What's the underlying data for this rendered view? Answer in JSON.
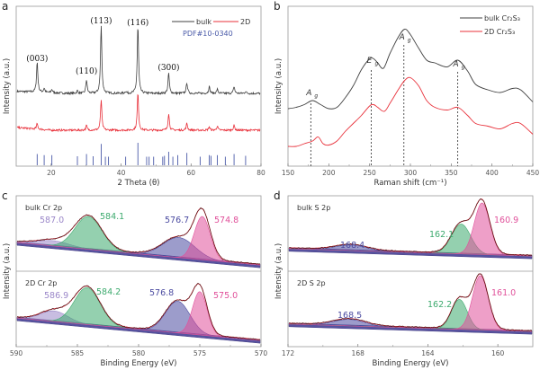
{
  "figure": {
    "panel_letters": [
      "a",
      "b",
      "c",
      "d"
    ]
  },
  "chart_data": [
    {
      "id": "a",
      "type": "line",
      "title": "",
      "xlabel": "2 Theta (θ)",
      "ylabel": "Intensity (a.u.)",
      "xlim": [
        10,
        80
      ],
      "xticks": [
        20,
        40,
        60,
        80
      ],
      "grid": false,
      "legend": {
        "placement": "top-right",
        "entries": [
          {
            "name": "bulk",
            "color": "#404040"
          },
          {
            "name": "2D",
            "color": "#e8303a"
          }
        ]
      },
      "reference_label": "PDF#10-0340",
      "reference_color": "#4a5aa8",
      "series": [
        {
          "name": "bulk",
          "color": "#404040",
          "peaks": [
            [
              16.0,
              0.45
            ],
            [
              18.0,
              0.06
            ],
            [
              20.2,
              0.05
            ],
            [
              27.5,
              0.04
            ],
            [
              30.1,
              0.2
            ],
            [
              34.3,
              1.0
            ],
            [
              41.3,
              0.03
            ],
            [
              44.8,
              1.0
            ],
            [
              53.6,
              0.3
            ],
            [
              58.8,
              0.16
            ],
            [
              65.2,
              0.1
            ],
            [
              67.5,
              0.06
            ],
            [
              72.3,
              0.1
            ],
            [
              75.6,
              0.03
            ]
          ]
        },
        {
          "name": "2D",
          "color": "#e8303a",
          "peaks": [
            [
              16.0,
              0.08
            ],
            [
              30.1,
              0.07
            ],
            [
              34.3,
              0.45
            ],
            [
              44.8,
              0.55
            ],
            [
              53.6,
              0.25
            ],
            [
              58.8,
              0.1
            ],
            [
              65.2,
              0.05
            ],
            [
              67.5,
              0.06
            ],
            [
              72.3,
              0.07
            ]
          ]
        }
      ],
      "reference_lines": [
        [
          16.0,
          0.5
        ],
        [
          18.0,
          0.45
        ],
        [
          20.2,
          0.45
        ],
        [
          27.5,
          0.4
        ],
        [
          30.1,
          0.5
        ],
        [
          32.0,
          0.4
        ],
        [
          34.3,
          0.95
        ],
        [
          35.5,
          0.38
        ],
        [
          36.4,
          0.38
        ],
        [
          41.3,
          0.38
        ],
        [
          44.8,
          1.0
        ],
        [
          47.3,
          0.38
        ],
        [
          48.0,
          0.38
        ],
        [
          49.3,
          0.38
        ],
        [
          51.9,
          0.38
        ],
        [
          52.4,
          0.42
        ],
        [
          53.6,
          0.6
        ],
        [
          54.8,
          0.38
        ],
        [
          56.2,
          0.45
        ],
        [
          58.8,
          0.55
        ],
        [
          62.6,
          0.38
        ],
        [
          65.2,
          0.45
        ],
        [
          65.7,
          0.42
        ],
        [
          67.5,
          0.45
        ],
        [
          69.8,
          0.38
        ],
        [
          72.3,
          0.5
        ],
        [
          75.6,
          0.42
        ]
      ],
      "annotations": [
        {
          "text": "(003)",
          "x": 16.0
        },
        {
          "text": "(110)",
          "x": 30.1
        },
        {
          "text": "(113)",
          "x": 34.3
        },
        {
          "text": "(116)",
          "x": 44.8
        },
        {
          "text": "(300)",
          "x": 53.6
        }
      ]
    },
    {
      "id": "b",
      "type": "line",
      "title": "",
      "xlabel": "Raman shift (cm⁻¹)",
      "ylabel": "Intensity (a.u.)",
      "xlim": [
        150,
        450
      ],
      "xticks": [
        150,
        200,
        250,
        300,
        350,
        400,
        450
      ],
      "grid": false,
      "legend": {
        "placement": "top-right",
        "entries": [
          {
            "name": "bulk Cr₂S₃",
            "color": "#404040"
          },
          {
            "name": "2D Cr₂S₃",
            "color": "#e8303a"
          }
        ]
      },
      "series": [
        {
          "name": "bulk Cr₂S₃",
          "color": "#404040",
          "x": [
            150,
            160,
            170,
            180,
            190,
            200,
            210,
            220,
            230,
            240,
            250,
            255,
            260,
            267,
            275,
            285,
            293,
            300,
            310,
            320,
            330,
            345,
            358,
            370,
            380,
            395,
            410,
            425,
            435,
            450
          ],
          "y": [
            0.38,
            0.39,
            0.41,
            0.44,
            0.41,
            0.38,
            0.39,
            0.46,
            0.55,
            0.67,
            0.75,
            0.75,
            0.72,
            0.68,
            0.79,
            0.91,
            0.97,
            0.93,
            0.83,
            0.74,
            0.72,
            0.69,
            0.74,
            0.66,
            0.56,
            0.52,
            0.5,
            0.53,
            0.52,
            0.43
          ]
        },
        {
          "name": "2D Cr₂S₃",
          "color": "#e8303a",
          "x": [
            150,
            160,
            170,
            180,
            187,
            193,
            200,
            210,
            220,
            230,
            240,
            250,
            255,
            260,
            268,
            275,
            285,
            293,
            300,
            310,
            320,
            330,
            345,
            358,
            370,
            380,
            395,
            410,
            425,
            435,
            450
          ],
          "y": [
            0.1,
            0.1,
            0.12,
            0.14,
            0.17,
            0.12,
            0.11,
            0.14,
            0.21,
            0.27,
            0.33,
            0.4,
            0.41,
            0.39,
            0.36,
            0.42,
            0.52,
            0.59,
            0.61,
            0.55,
            0.44,
            0.39,
            0.37,
            0.39,
            0.33,
            0.27,
            0.25,
            0.23,
            0.27,
            0.27,
            0.19
          ]
        }
      ],
      "annotations": [
        {
          "text": "A",
          "sub": "g",
          "x": 178
        },
        {
          "text": "E",
          "sub": "g",
          "x": 252
        },
        {
          "text": "A",
          "sub": "g",
          "x": 292
        },
        {
          "text": "A",
          "sub": "g",
          "x": 358
        }
      ]
    },
    {
      "id": "c",
      "type": "area",
      "title": "",
      "xlabel": "Binding Energy (eV)",
      "ylabel": "Intensity (a.u.)",
      "xlim": [
        590,
        570
      ],
      "xticks": [
        590,
        585,
        580,
        575,
        570
      ],
      "grid": false,
      "subpanels": [
        {
          "label": "bulk Cr 2p",
          "components": [
            {
              "center": 587.0,
              "label": "587.0",
              "color": "#9b87c9",
              "height": 0.1,
              "width": 1.3
            },
            {
              "center": 584.1,
              "label": "584.1",
              "color": "#3daa6e",
              "height": 0.62,
              "width": 1.1
            },
            {
              "center": 576.7,
              "label": "576.7",
              "color": "#4a4aa0",
              "height": 0.38,
              "width": 1.3
            },
            {
              "center": 574.8,
              "label": "574.8",
              "color": "#e0509a",
              "height": 0.82,
              "width": 0.65
            }
          ]
        },
        {
          "label": "2D Cr 2p",
          "components": [
            {
              "center": 586.9,
              "label": "586.9",
              "color": "#9b87c9",
              "height": 0.2,
              "width": 1.1
            },
            {
              "center": 584.2,
              "label": "584.2",
              "color": "#3daa6e",
              "height": 0.7,
              "width": 1.05
            },
            {
              "center": 576.8,
              "label": "576.8",
              "color": "#4a4aa0",
              "height": 0.6,
              "width": 1.0
            },
            {
              "center": 575.0,
              "label": "575.0",
              "color": "#e0509a",
              "height": 0.82,
              "width": 0.6
            }
          ]
        }
      ]
    },
    {
      "id": "d",
      "type": "area",
      "title": "",
      "xlabel": "Binding Energy (eV)",
      "ylabel": "Intensity (a.u.)",
      "xlim": [
        172,
        158
      ],
      "xticks": [
        172,
        168,
        164,
        160
      ],
      "grid": false,
      "subpanels": [
        {
          "label": "bulk S 2p",
          "components": [
            {
              "center": 168.4,
              "label": "168.4",
              "color": "#4a4aa0",
              "height": 0.1,
              "width": 0.9
            },
            {
              "center": 162.1,
              "label": "162.1",
              "color": "#3daa6e",
              "height": 0.55,
              "width": 0.55
            },
            {
              "center": 160.9,
              "label": "160.9",
              "color": "#e0509a",
              "height": 0.95,
              "width": 0.45
            }
          ]
        },
        {
          "label": "2D S 2p",
          "components": [
            {
              "center": 168.5,
              "label": "168.5",
              "color": "#4a4aa0",
              "height": 0.12,
              "width": 0.9
            },
            {
              "center": 162.2,
              "label": "162.2",
              "color": "#3daa6e",
              "height": 0.55,
              "width": 0.45
            },
            {
              "center": 161.0,
              "label": "161.0",
              "color": "#e0509a",
              "height": 1.0,
              "width": 0.45
            }
          ]
        }
      ]
    }
  ]
}
